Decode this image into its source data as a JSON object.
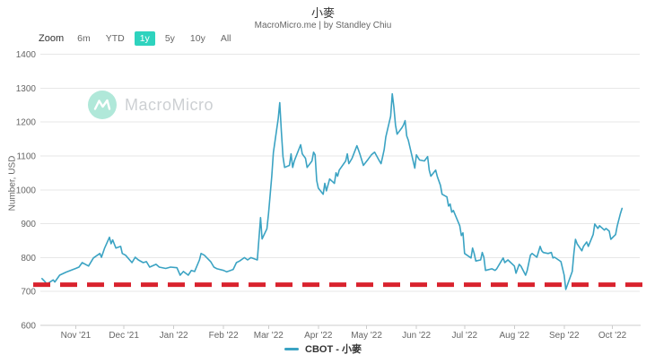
{
  "header": {
    "title": "小麥",
    "subtitle": "MacroMicro.me | by Standley Chiu"
  },
  "toolbar": {
    "zoom_label": "Zoom",
    "buttons": [
      {
        "label": "6m",
        "selected": false
      },
      {
        "label": "YTD",
        "selected": false
      },
      {
        "label": "1y",
        "selected": true
      },
      {
        "label": "5y",
        "selected": false
      },
      {
        "label": "10y",
        "selected": false
      },
      {
        "label": "All",
        "selected": false
      }
    ]
  },
  "watermark": {
    "text": "MacroMicro"
  },
  "legend": {
    "label": "CBOT - 小麥"
  },
  "colors": {
    "accent_teal": "#2ed3be",
    "series_line": "#3ba3c3",
    "reference_red": "#d9232e",
    "grid": "#e7e7e7",
    "axis": "#cccccc",
    "text_muted": "#666666",
    "text_dark": "#333333",
    "watermark_icon": "#b0e8d9",
    "watermark_text": "#cdd0d3"
  },
  "chart_data": {
    "type": "line",
    "title": "小麥",
    "ylabel": "Number, USD",
    "ylim": [
      600,
      1400
    ],
    "yticks": [
      600,
      700,
      800,
      900,
      1000,
      1100,
      1200,
      1300,
      1400
    ],
    "grid": true,
    "legend_position": "bottom",
    "x_domain": [
      "2021-10-10",
      "2022-10-18"
    ],
    "xticks": [
      "2021-11-01",
      "2021-12-01",
      "2022-01-01",
      "2022-02-01",
      "2022-03-01",
      "2022-04-01",
      "2022-05-01",
      "2022-06-01",
      "2022-07-01",
      "2022-08-01",
      "2022-09-01",
      "2022-10-01"
    ],
    "xtick_labels": [
      "Nov '21",
      "Dec '21",
      "Jan '22",
      "Feb '22",
      "Mar '22",
      "Apr '22",
      "May '22",
      "Jun '22",
      "Jul '22",
      "Aug '22",
      "Sep '22",
      "Oct '22"
    ],
    "reference_line": {
      "value": 720,
      "color": "#d9232e",
      "style": "dashed"
    },
    "series": [
      {
        "name": "CBOT - 小麥",
        "color": "#3ba3c3",
        "points": [
          [
            "2021-10-11",
            738
          ],
          [
            "2021-10-13",
            728
          ],
          [
            "2021-10-14",
            722
          ],
          [
            "2021-10-18",
            734
          ],
          [
            "2021-10-19",
            728
          ],
          [
            "2021-10-22",
            748
          ],
          [
            "2021-10-26",
            757
          ],
          [
            "2021-11-01",
            768
          ],
          [
            "2021-11-03",
            772
          ],
          [
            "2021-11-05",
            785
          ],
          [
            "2021-11-09",
            775
          ],
          [
            "2021-11-12",
            799
          ],
          [
            "2021-11-16",
            812
          ],
          [
            "2021-11-17",
            801
          ],
          [
            "2021-11-19",
            828
          ],
          [
            "2021-11-22",
            860
          ],
          [
            "2021-11-23",
            841
          ],
          [
            "2021-11-24",
            852
          ],
          [
            "2021-11-26",
            828
          ],
          [
            "2021-11-29",
            833
          ],
          [
            "2021-11-30",
            812
          ],
          [
            "2021-12-02",
            807
          ],
          [
            "2021-12-06",
            785
          ],
          [
            "2021-12-08",
            801
          ],
          [
            "2021-12-10",
            793
          ],
          [
            "2021-12-13",
            785
          ],
          [
            "2021-12-15",
            788
          ],
          [
            "2021-12-17",
            772
          ],
          [
            "2021-12-21",
            780
          ],
          [
            "2021-12-23",
            772
          ],
          [
            "2021-12-27",
            768
          ],
          [
            "2021-12-30",
            772
          ],
          [
            "2022-01-03",
            770
          ],
          [
            "2022-01-05",
            748
          ],
          [
            "2022-01-07",
            759
          ],
          [
            "2022-01-10",
            748
          ],
          [
            "2022-01-12",
            762
          ],
          [
            "2022-01-14",
            759
          ],
          [
            "2022-01-17",
            793
          ],
          [
            "2022-01-18",
            812
          ],
          [
            "2022-01-20",
            807
          ],
          [
            "2022-01-24",
            788
          ],
          [
            "2022-01-26",
            772
          ],
          [
            "2022-01-28",
            767
          ],
          [
            "2022-02-01",
            762
          ],
          [
            "2022-02-03",
            758
          ],
          [
            "2022-02-07",
            765
          ],
          [
            "2022-02-09",
            785
          ],
          [
            "2022-02-11",
            790
          ],
          [
            "2022-02-14",
            800
          ],
          [
            "2022-02-16",
            793
          ],
          [
            "2022-02-18",
            800
          ],
          [
            "2022-02-22",
            793
          ],
          [
            "2022-02-24",
            918
          ],
          [
            "2022-02-25",
            855
          ],
          [
            "2022-02-28",
            885
          ],
          [
            "2022-03-01",
            930
          ],
          [
            "2022-03-02",
            985
          ],
          [
            "2022-03-03",
            1040
          ],
          [
            "2022-03-04",
            1110
          ],
          [
            "2022-03-07",
            1210
          ],
          [
            "2022-03-08",
            1257
          ],
          [
            "2022-03-09",
            1172
          ],
          [
            "2022-03-10",
            1098
          ],
          [
            "2022-03-11",
            1066
          ],
          [
            "2022-03-14",
            1072
          ],
          [
            "2022-03-15",
            1106
          ],
          [
            "2022-03-16",
            1066
          ],
          [
            "2022-03-17",
            1085
          ],
          [
            "2022-03-21",
            1133
          ],
          [
            "2022-03-22",
            1106
          ],
          [
            "2022-03-24",
            1093
          ],
          [
            "2022-03-25",
            1066
          ],
          [
            "2022-03-28",
            1085
          ],
          [
            "2022-03-29",
            1111
          ],
          [
            "2022-03-30",
            1103
          ],
          [
            "2022-03-31",
            1027
          ],
          [
            "2022-04-01",
            1005
          ],
          [
            "2022-04-04",
            987
          ],
          [
            "2022-04-05",
            1019
          ],
          [
            "2022-04-06",
            997
          ],
          [
            "2022-04-08",
            1032
          ],
          [
            "2022-04-11",
            1019
          ],
          [
            "2022-04-12",
            1050
          ],
          [
            "2022-04-13",
            1040
          ],
          [
            "2022-04-14",
            1058
          ],
          [
            "2022-04-18",
            1085
          ],
          [
            "2022-04-19",
            1106
          ],
          [
            "2022-04-20",
            1077
          ],
          [
            "2022-04-22",
            1093
          ],
          [
            "2022-04-25",
            1130
          ],
          [
            "2022-04-26",
            1117
          ],
          [
            "2022-04-27",
            1103
          ],
          [
            "2022-04-29",
            1072
          ],
          [
            "2022-05-02",
            1090
          ],
          [
            "2022-05-04",
            1103
          ],
          [
            "2022-05-06",
            1111
          ],
          [
            "2022-05-09",
            1085
          ],
          [
            "2022-05-10",
            1077
          ],
          [
            "2022-05-11",
            1098
          ],
          [
            "2022-05-12",
            1119
          ],
          [
            "2022-05-13",
            1156
          ],
          [
            "2022-05-16",
            1217
          ],
          [
            "2022-05-17",
            1283
          ],
          [
            "2022-05-18",
            1244
          ],
          [
            "2022-05-19",
            1191
          ],
          [
            "2022-05-20",
            1164
          ],
          [
            "2022-05-23",
            1183
          ],
          [
            "2022-05-24",
            1191
          ],
          [
            "2022-05-25",
            1204
          ],
          [
            "2022-05-26",
            1159
          ],
          [
            "2022-05-27",
            1146
          ],
          [
            "2022-05-31",
            1064
          ],
          [
            "2022-06-01",
            1103
          ],
          [
            "2022-06-03",
            1088
          ],
          [
            "2022-06-06",
            1085
          ],
          [
            "2022-06-08",
            1098
          ],
          [
            "2022-06-09",
            1058
          ],
          [
            "2022-06-10",
            1040
          ],
          [
            "2022-06-13",
            1058
          ],
          [
            "2022-06-14",
            1040
          ],
          [
            "2022-06-16",
            1013
          ],
          [
            "2022-06-17",
            987
          ],
          [
            "2022-06-20",
            979
          ],
          [
            "2022-06-21",
            952
          ],
          [
            "2022-06-22",
            958
          ],
          [
            "2022-06-23",
            934
          ],
          [
            "2022-06-24",
            939
          ],
          [
            "2022-06-28",
            894
          ],
          [
            "2022-06-29",
            865
          ],
          [
            "2022-06-30",
            873
          ],
          [
            "2022-07-01",
            812
          ],
          [
            "2022-07-05",
            799
          ],
          [
            "2022-07-06",
            828
          ],
          [
            "2022-07-07",
            812
          ],
          [
            "2022-07-08",
            790
          ],
          [
            "2022-07-11",
            793
          ],
          [
            "2022-07-12",
            815
          ],
          [
            "2022-07-13",
            801
          ],
          [
            "2022-07-14",
            762
          ],
          [
            "2022-07-18",
            767
          ],
          [
            "2022-07-20",
            762
          ],
          [
            "2022-07-21",
            767
          ],
          [
            "2022-07-25",
            799
          ],
          [
            "2022-07-26",
            785
          ],
          [
            "2022-07-28",
            793
          ],
          [
            "2022-08-01",
            775
          ],
          [
            "2022-08-02",
            754
          ],
          [
            "2022-08-04",
            780
          ],
          [
            "2022-08-05",
            775
          ],
          [
            "2022-08-08",
            748
          ],
          [
            "2022-08-09",
            762
          ],
          [
            "2022-08-11",
            807
          ],
          [
            "2022-08-12",
            812
          ],
          [
            "2022-08-15",
            801
          ],
          [
            "2022-08-17",
            833
          ],
          [
            "2022-08-18",
            820
          ],
          [
            "2022-08-19",
            815
          ],
          [
            "2022-08-22",
            812
          ],
          [
            "2022-08-24",
            815
          ],
          [
            "2022-08-25",
            799
          ],
          [
            "2022-08-26",
            801
          ],
          [
            "2022-08-30",
            788
          ],
          [
            "2022-09-01",
            748
          ],
          [
            "2022-09-02",
            706
          ],
          [
            "2022-09-06",
            759
          ],
          [
            "2022-09-07",
            812
          ],
          [
            "2022-09-08",
            854
          ],
          [
            "2022-09-09",
            841
          ],
          [
            "2022-09-12",
            820
          ],
          [
            "2022-09-13",
            833
          ],
          [
            "2022-09-15",
            846
          ],
          [
            "2022-09-16",
            833
          ],
          [
            "2022-09-19",
            868
          ],
          [
            "2022-09-20",
            899
          ],
          [
            "2022-09-22",
            886
          ],
          [
            "2022-09-23",
            894
          ],
          [
            "2022-09-26",
            881
          ],
          [
            "2022-09-27",
            886
          ],
          [
            "2022-09-29",
            878
          ],
          [
            "2022-09-30",
            854
          ],
          [
            "2022-10-03",
            868
          ],
          [
            "2022-10-04",
            893
          ],
          [
            "2022-10-06",
            930
          ],
          [
            "2022-10-07",
            945
          ]
        ]
      }
    ]
  }
}
